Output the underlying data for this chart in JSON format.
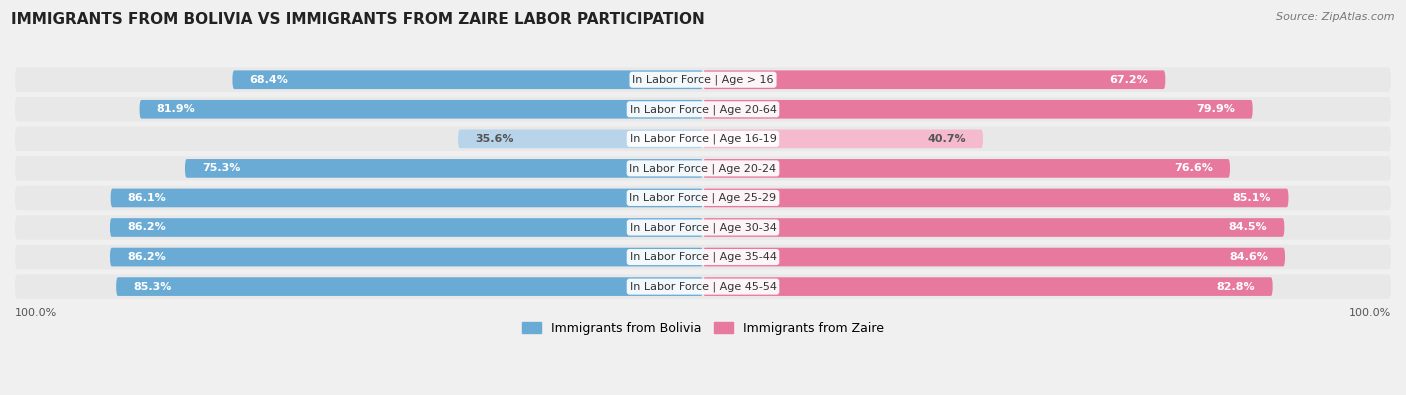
{
  "title": "IMMIGRANTS FROM BOLIVIA VS IMMIGRANTS FROM ZAIRE LABOR PARTICIPATION",
  "source": "Source: ZipAtlas.com",
  "categories": [
    "In Labor Force | Age > 16",
    "In Labor Force | Age 20-64",
    "In Labor Force | Age 16-19",
    "In Labor Force | Age 20-24",
    "In Labor Force | Age 25-29",
    "In Labor Force | Age 30-34",
    "In Labor Force | Age 35-44",
    "In Labor Force | Age 45-54"
  ],
  "bolivia_values": [
    68.4,
    81.9,
    35.6,
    75.3,
    86.1,
    86.2,
    86.2,
    85.3
  ],
  "zaire_values": [
    67.2,
    79.9,
    40.7,
    76.6,
    85.1,
    84.5,
    84.6,
    82.8
  ],
  "bolivia_color_full": "#6aabd6",
  "bolivia_color_light": "#b8d4eb",
  "zaire_color_full": "#e8799e",
  "zaire_color_light": "#f5bace",
  "background_color": "#f0f0f0",
  "row_bg": "#e8e8e8",
  "bar_row_bg": "#f8f8f8",
  "max_value": 100.0,
  "legend_bolivia": "Immigrants from Bolivia",
  "legend_zaire": "Immigrants from Zaire",
  "title_fontsize": 11,
  "source_fontsize": 8,
  "label_fontsize": 8,
  "value_fontsize": 8
}
